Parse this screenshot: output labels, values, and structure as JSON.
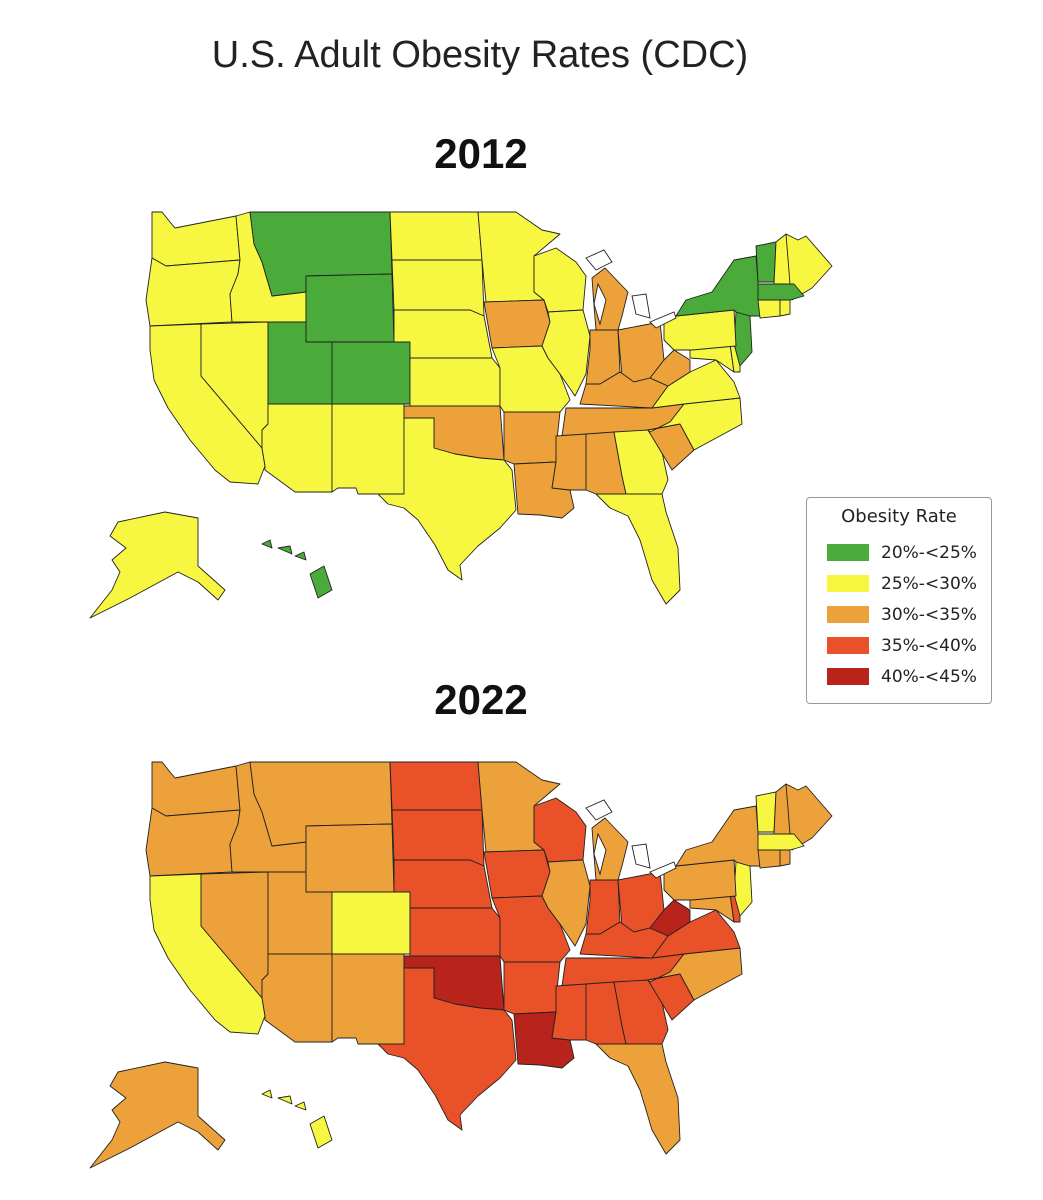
{
  "title": "U.S. Adult Obesity Rates (CDC)",
  "legend": {
    "title": "Obesity Rate",
    "items": [
      {
        "label": "20%-<25%",
        "color": "#4aab3a"
      },
      {
        "label": "25%-<30%",
        "color": "#f7f742"
      },
      {
        "label": "30%-<35%",
        "color": "#eda13a"
      },
      {
        "label": "35%-<40%",
        "color": "#e95128"
      },
      {
        "label": "40%-<45%",
        "color": "#b8241c"
      }
    ]
  },
  "maps": [
    {
      "year": "2012",
      "rates": {
        "WA": 1,
        "OR": 1,
        "CA": 1,
        "NV": 1,
        "ID": 1,
        "MT": 0,
        "WY": 0,
        "UT": 0,
        "CO": 0,
        "AZ": 1,
        "NM": 1,
        "ND": 1,
        "SD": 1,
        "NE": 1,
        "KS": 1,
        "OK": 2,
        "TX": 1,
        "MN": 1,
        "IA": 2,
        "MO": 1,
        "AR": 2,
        "LA": 2,
        "WI": 1,
        "IL": 1,
        "MI": 2,
        "IN": 2,
        "OH": 2,
        "KY": 2,
        "TN": 2,
        "MS": 2,
        "AL": 2,
        "GA": 1,
        "FL": 1,
        "SC": 2,
        "NC": 1,
        "VA": 1,
        "WV": 2,
        "PA": 1,
        "NY": 0,
        "VT": 0,
        "NH": 1,
        "ME": 1,
        "MA": 0,
        "CT": 1,
        "RI": 1,
        "NJ": 0,
        "DE": 1,
        "MD": 1,
        "AK": 1,
        "HI": 0
      }
    },
    {
      "year": "2022",
      "rates": {
        "WA": 2,
        "OR": 2,
        "CA": 1,
        "NV": 2,
        "ID": 2,
        "MT": 2,
        "WY": 2,
        "UT": 2,
        "CO": 1,
        "AZ": 2,
        "NM": 2,
        "ND": 3,
        "SD": 3,
        "NE": 3,
        "KS": 3,
        "OK": 4,
        "TX": 3,
        "MN": 2,
        "IA": 3,
        "MO": 3,
        "AR": 3,
        "LA": 4,
        "WI": 3,
        "IL": 2,
        "MI": 2,
        "IN": 3,
        "OH": 3,
        "KY": 3,
        "TN": 3,
        "MS": 3,
        "AL": 3,
        "GA": 3,
        "FL": 2,
        "SC": 3,
        "NC": 2,
        "VA": 3,
        "WV": 4,
        "PA": 2,
        "NY": 2,
        "VT": 1,
        "NH": 2,
        "ME": 2,
        "MA": 1,
        "CT": 2,
        "RI": 2,
        "NJ": 1,
        "DE": 3,
        "MD": 2,
        "AK": 2,
        "HI": 1
      }
    }
  ]
}
